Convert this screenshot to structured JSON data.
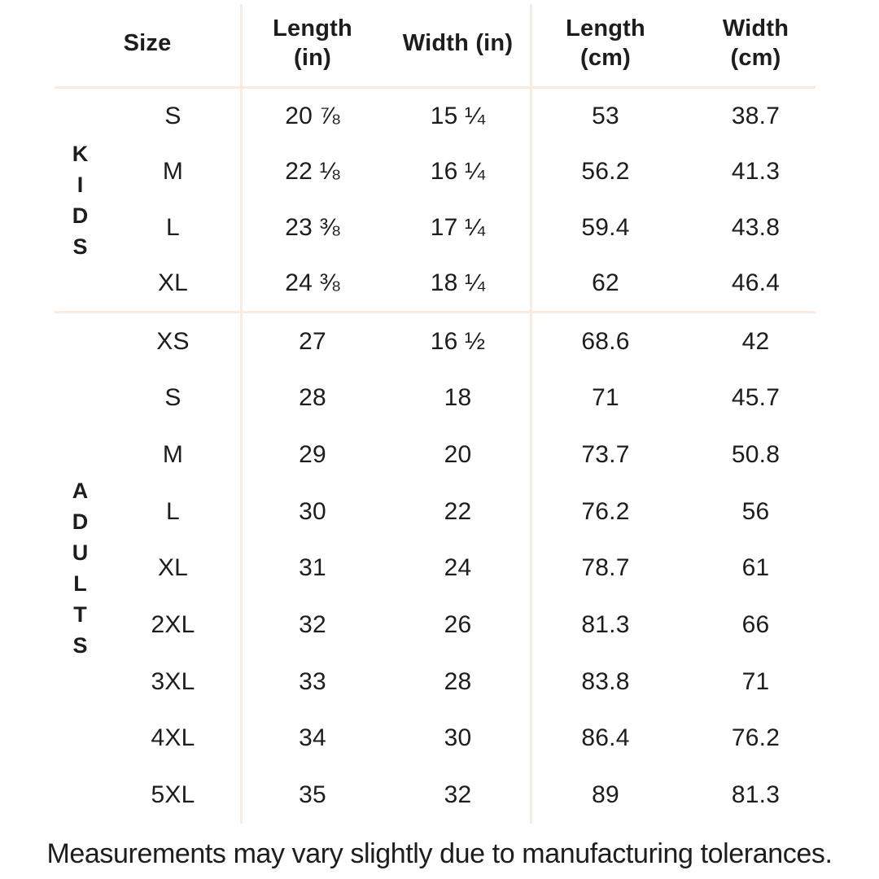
{
  "table": {
    "headers": {
      "size": "Size",
      "length_in": "Length\n(in)",
      "width_in": "Width (in)",
      "length_cm": "Length\n(cm)",
      "width_cm": "Width\n(cm)"
    },
    "groups": [
      {
        "label": "KIDS",
        "rows": [
          {
            "size": "S",
            "length_in": "20 ⅞",
            "width_in": "15 ¼",
            "length_cm": "53",
            "width_cm": "38.7"
          },
          {
            "size": "M",
            "length_in": "22 ⅛",
            "width_in": "16 ¼",
            "length_cm": "56.2",
            "width_cm": "41.3"
          },
          {
            "size": "L",
            "length_in": "23 ⅜",
            "width_in": "17 ¼",
            "length_cm": "59.4",
            "width_cm": "43.8"
          },
          {
            "size": "XL",
            "length_in": "24 ⅜",
            "width_in": "18 ¼",
            "length_cm": "62",
            "width_cm": "46.4"
          }
        ]
      },
      {
        "label": "ADULTS",
        "rows": [
          {
            "size": "XS",
            "length_in": "27",
            "width_in": "16 ½",
            "length_cm": "68.6",
            "width_cm": "42"
          },
          {
            "size": "S",
            "length_in": "28",
            "width_in": "18",
            "length_cm": "71",
            "width_cm": "45.7"
          },
          {
            "size": "M",
            "length_in": "29",
            "width_in": "20",
            "length_cm": "73.7",
            "width_cm": "50.8"
          },
          {
            "size": "L",
            "length_in": "30",
            "width_in": "22",
            "length_cm": "76.2",
            "width_cm": "56"
          },
          {
            "size": "XL",
            "length_in": "31",
            "width_in": "24",
            "length_cm": "78.7",
            "width_cm": "61"
          },
          {
            "size": "2XL",
            "length_in": "32",
            "width_in": "26",
            "length_cm": "81.3",
            "width_cm": "66"
          },
          {
            "size": "3XL",
            "length_in": "33",
            "width_in": "28",
            "length_cm": "83.8",
            "width_cm": "71"
          },
          {
            "size": "4XL",
            "length_in": "34",
            "width_in": "30",
            "length_cm": "86.4",
            "width_cm": "76.2"
          },
          {
            "size": "5XL",
            "length_in": "35",
            "width_in": "32",
            "length_cm": "89",
            "width_cm": "81.3"
          }
        ]
      }
    ]
  },
  "footer": {
    "note": "Measurements may vary slightly due to manufacturing tolerances."
  },
  "colors": {
    "divider": "#fbeade",
    "text": "#1d1d1f",
    "background": "#ffffff"
  }
}
